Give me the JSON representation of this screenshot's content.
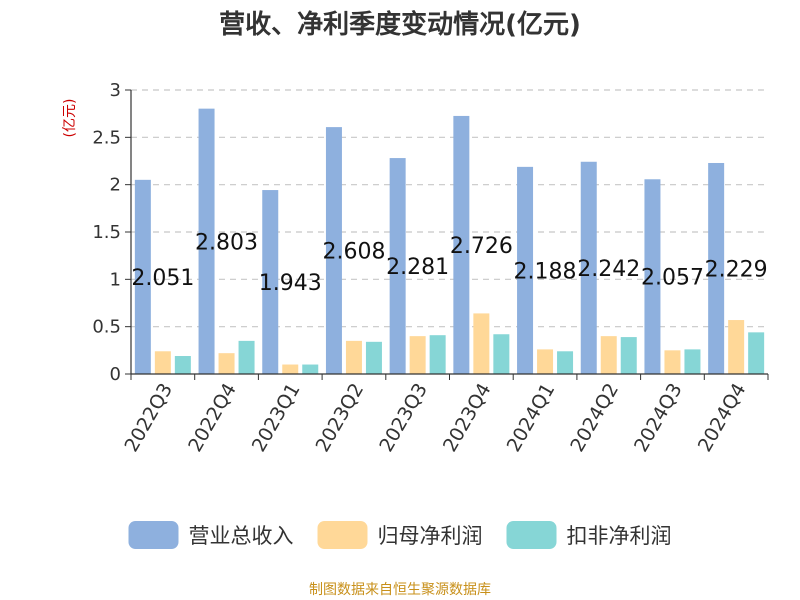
{
  "chart_data": {
    "type": "bar",
    "title": "营收、净利季度变动情况(亿元)",
    "unit_label": "(亿元)",
    "categories": [
      "2022Q3",
      "2022Q4",
      "2023Q1",
      "2023Q2",
      "2023Q3",
      "2023Q4",
      "2024Q1",
      "2024Q2",
      "2024Q3",
      "2024Q4"
    ],
    "series": [
      {
        "name": "营业总收入",
        "color": "#8eb0de",
        "values": [
          2.051,
          2.803,
          1.943,
          2.608,
          2.281,
          2.726,
          2.188,
          2.242,
          2.057,
          2.229
        ],
        "labels": [
          "2.051",
          "2.803",
          "1.943",
          "2.608",
          "2.281",
          "2.726",
          "2.188",
          "2.242",
          "2.057",
          "2.229"
        ]
      },
      {
        "name": "归母净利润",
        "color": "#ffd898",
        "values": [
          0.24,
          0.22,
          0.1,
          0.35,
          0.4,
          0.64,
          0.26,
          0.4,
          0.25,
          0.57
        ]
      },
      {
        "name": "扣非净利润",
        "color": "#86d6d6",
        "values": [
          0.19,
          0.35,
          0.1,
          0.34,
          0.41,
          0.42,
          0.24,
          0.39,
          0.26,
          0.44
        ]
      }
    ],
    "yticks": [
      "0",
      "0.5",
      "1",
      "1.5",
      "2",
      "2.5",
      "3"
    ],
    "ylim": [
      0,
      3
    ],
    "grid": true,
    "legend_position": "bottom"
  },
  "source_text": "制图数据来自恒生聚源数据库"
}
